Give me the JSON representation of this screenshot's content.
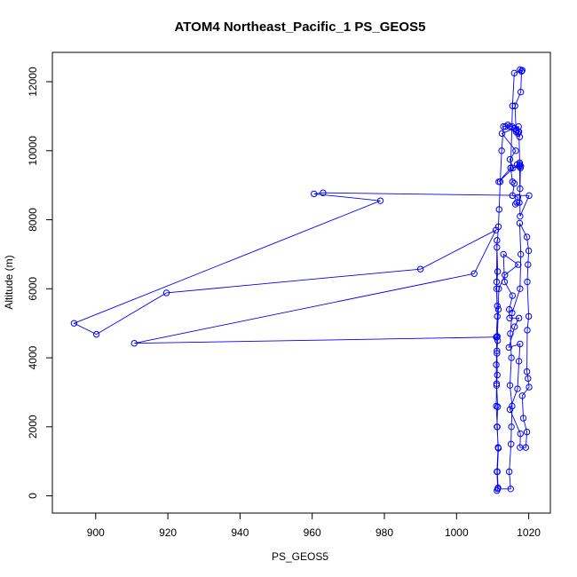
{
  "chart_data": {
    "type": "line",
    "title": "ATOM4 Northeast_Pacific_1 PS_GEOS5",
    "xlabel": "PS_GEOS5",
    "ylabel": "Altitude (m)",
    "xlim": [
      888,
      1026
    ],
    "ylim": [
      -500,
      12850
    ],
    "x_ticks": [
      900,
      920,
      940,
      960,
      980,
      1000,
      1020
    ],
    "x_tick_labels": [
      "900",
      "920",
      "940",
      "960",
      "980",
      "1000",
      "1020"
    ],
    "y_ticks": [
      0,
      2000,
      4000,
      6000,
      8000,
      10000,
      12000
    ],
    "y_tick_labels": [
      "0",
      "2000",
      "4000",
      "6000",
      "8000",
      "10000",
      "12000"
    ],
    "grid": false,
    "legend": "none",
    "series": [
      {
        "color": "#0000ff",
        "marker": "open-circle",
        "x": [
          1011.2,
          1011.5,
          1011.3,
          1011.6,
          1011.2,
          1011.4,
          1011.1,
          1011.3,
          1011.2,
          1011.0,
          1011.3,
          1011.1,
          1011.4,
          1011.2,
          1011.6,
          1011.8,
          1012.1,
          1012.5,
          1013.0,
          1013.6,
          1014.2,
          1014.8,
          1015.4,
          1016.0,
          1016.6,
          1017.2,
          1017.5,
          1017.0,
          1016.5,
          1016.2,
          1017.8,
          1018.0,
          1017.6,
          1018.2,
          1016.0,
          1015.5,
          1015.0,
          1011.7,
          1016.8,
          1017.4,
          1015.6,
          1014.8,
          1016.4,
          1012.6,
          1016.1,
          1017.2,
          1017.3,
          1017.5,
          1017.8,
          1015.0,
          1015.5,
          1016.0,
          1015.5,
          1017.0,
          1016.7,
          1016.3,
          1017.4,
          1017.6,
          1017.7,
          1017.5,
          1017.6,
          1020.1,
          963.0,
          960.5,
          978.9,
          894.0,
          900.2,
          919.6,
          990.0,
          1010.9,
          1004.9,
          910.7,
          1011.2,
          1011.3,
          1011.6,
          1011.7,
          1013.4,
          1017.1,
          1013.0,
          1013.3,
          1015.5,
          1014.6,
          1014.7,
          1017.3,
          1016.1,
          1014.5,
          1017.6,
          1017.3,
          1016.9,
          1014.8,
          1017.7,
          1017.6,
          1019.2,
          1019.5,
          1018.5,
          1018.2,
          1020.1,
          1019.8,
          1019.5,
          1019.6,
          1020.0,
          1019.6,
          1019.8,
          1020.0,
          1019.5,
          1017.5,
          1017.8,
          1017.6,
          1015.4,
          1014.9,
          1015.2,
          1014.8,
          1015.4,
          1015.2,
          1015.1,
          1014.6,
          1015.0,
          1011.4,
          1011.2,
          1011.5,
          1011.3,
          1011.0,
          1011.1,
          1011.0,
          1011.2,
          1011.4,
          1011.3,
          1011.1,
          1011.2
        ],
        "y": [
          150,
          230,
          700,
          1380,
          2000,
          2580,
          3250,
          3500,
          4130,
          4600,
          5200,
          6000,
          6500,
          7200,
          7800,
          8300,
          9100,
          10000,
          10700,
          10700,
          10750,
          10700,
          10700,
          10650,
          10600,
          10550,
          10400,
          10500,
          10550,
          11300,
          11700,
          12300,
          12350,
          12330,
          12250,
          11300,
          9500,
          9100,
          9600,
          9550,
          9500,
          9750,
          10000,
          10500,
          10650,
          10700,
          10550,
          9600,
          9550,
          9500,
          9100,
          9050,
          8700,
          8650,
          8500,
          8450,
          8500,
          8900,
          9500,
          9650,
          8100,
          8700,
          8780,
          8750,
          8550,
          5000,
          4680,
          5880,
          6570,
          7700,
          6440,
          4420,
          4600,
          4620,
          5400,
          6000,
          6400,
          6700,
          7000,
          6200,
          5800,
          5400,
          5150,
          5150,
          4900,
          4300,
          4400,
          3900,
          3100,
          2500,
          1800,
          1400,
          1400,
          1850,
          2250,
          2900,
          3150,
          3400,
          3600,
          4800,
          5200,
          6200,
          6700,
          7100,
          7500,
          7900,
          7000,
          6000,
          5300,
          4700,
          4000,
          3200,
          2600,
          2000,
          1500,
          700,
          200,
          200,
          700,
          1400,
          2000,
          2600,
          3200,
          3800,
          4200,
          4500,
          5500,
          6200,
          7400
        ]
      }
    ]
  }
}
